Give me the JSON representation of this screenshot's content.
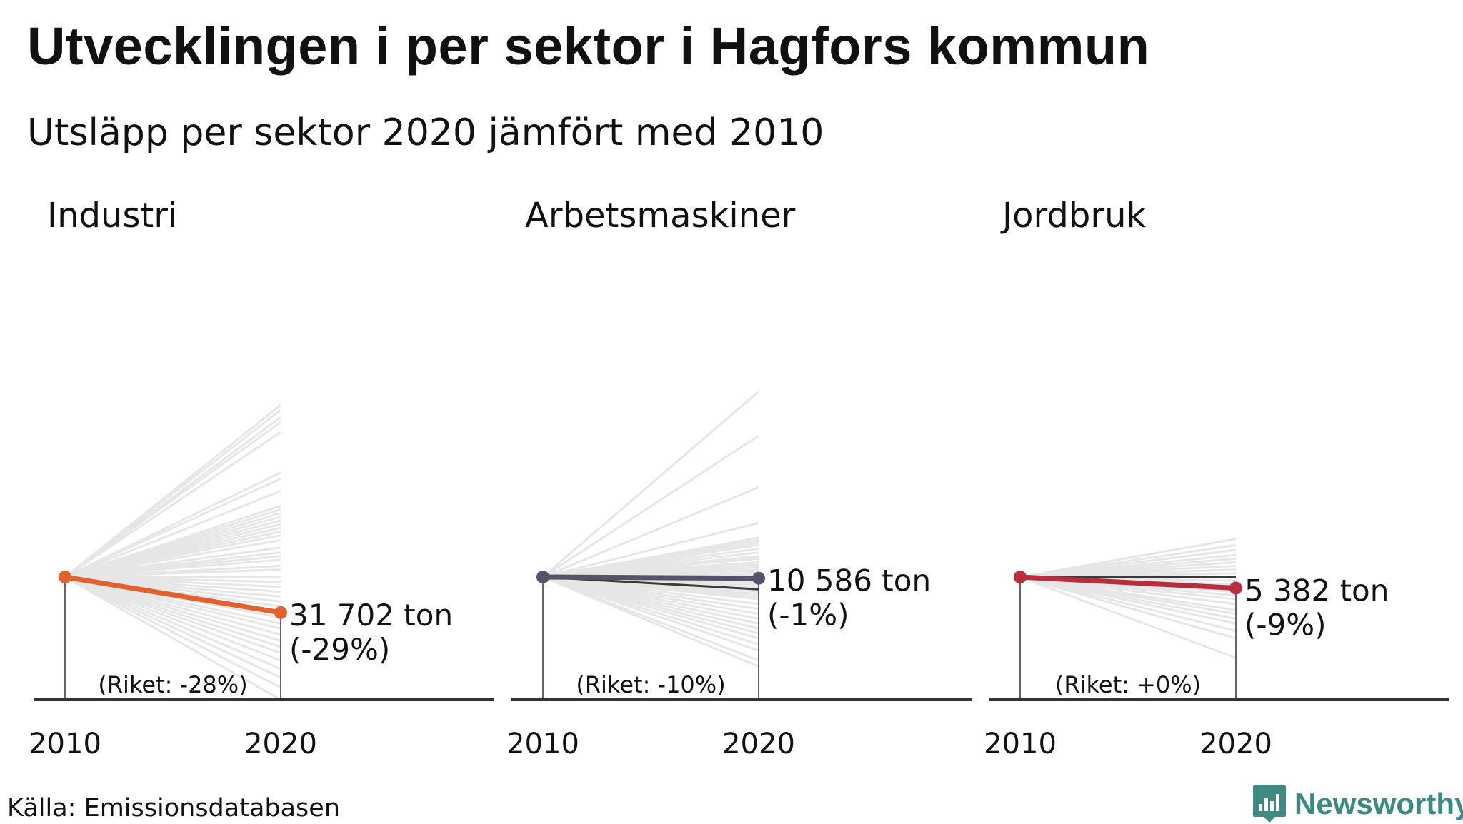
{
  "title": "Utvecklingen i per sektor i Hagfors kommun",
  "subtitle": "Utsläpp per sektor 2020 jämfört med 2010",
  "source": "Källa: Emissionsdatabasen",
  "brand": "Newsworthy",
  "colors": {
    "industri": "#e2612f",
    "arbetsmaskiner": "#545468",
    "jordbruk": "#b72f3c",
    "background_lines": "#e6e6e6",
    "axis": "#333333",
    "brand": "#3d8a82"
  },
  "chart_data": [
    {
      "type": "line",
      "panel_title": "Industri",
      "x": [
        "2010",
        "2020"
      ],
      "highlight": {
        "change_pct": -29,
        "value_2020_ton": 31702,
        "label_value": "31 702 ton",
        "label_change": "(-29%)"
      },
      "national_note": "(Riket: -28%)",
      "background_changes_pct": [
        140,
        136,
        130,
        126,
        118,
        85,
        80,
        70,
        58,
        55,
        52,
        49,
        46,
        43,
        40,
        37,
        34,
        30,
        24,
        20,
        17,
        14,
        9,
        6,
        0,
        -4,
        -8,
        -12,
        -16,
        -20,
        -24,
        -28,
        -33,
        -38,
        -42,
        -47,
        -52,
        -57,
        -62,
        -68,
        -75,
        -82,
        -90,
        -100
      ],
      "ylim_pct": [
        -100,
        140
      ]
    },
    {
      "type": "line",
      "panel_title": "Arbetsmaskiner",
      "x": [
        "2010",
        "2020"
      ],
      "highlight": {
        "change_pct": -1,
        "value_2020_ton": 10586,
        "label_value": "10 586 ton",
        "label_change": "(-1%)"
      },
      "secondary_change_pct": -10,
      "national_note": "(Riket: -10%)",
      "background_changes_pct": [
        151,
        115,
        73,
        44,
        32,
        30,
        28,
        26,
        23,
        20,
        17,
        15,
        12,
        10,
        8,
        6,
        4,
        2,
        -2,
        -4,
        -6,
        -8,
        -10,
        -12,
        -14,
        -16,
        -18,
        -22,
        -26,
        -30,
        -34,
        -38,
        -42,
        -46,
        -50,
        -55,
        -60,
        -68,
        -73
      ],
      "ylim_pct": [
        -100,
        151
      ]
    },
    {
      "type": "line",
      "panel_title": "Jordbruk",
      "x": [
        "2010",
        "2020"
      ],
      "highlight": {
        "change_pct": -9,
        "value_2020_ton": 5382,
        "label_value": "5 382 ton",
        "label_change": "(-9%)"
      },
      "secondary_change_pct": 0,
      "national_note": "(Riket: +0%)",
      "background_changes_pct": [
        31,
        26,
        22,
        18,
        15,
        12,
        9,
        6,
        3,
        0,
        -3,
        -6,
        -9,
        -12,
        -15,
        -18,
        -22,
        -27,
        -30,
        -34,
        -38,
        -44,
        -50,
        -66
      ],
      "ylim_pct": [
        -100,
        31
      ]
    }
  ]
}
